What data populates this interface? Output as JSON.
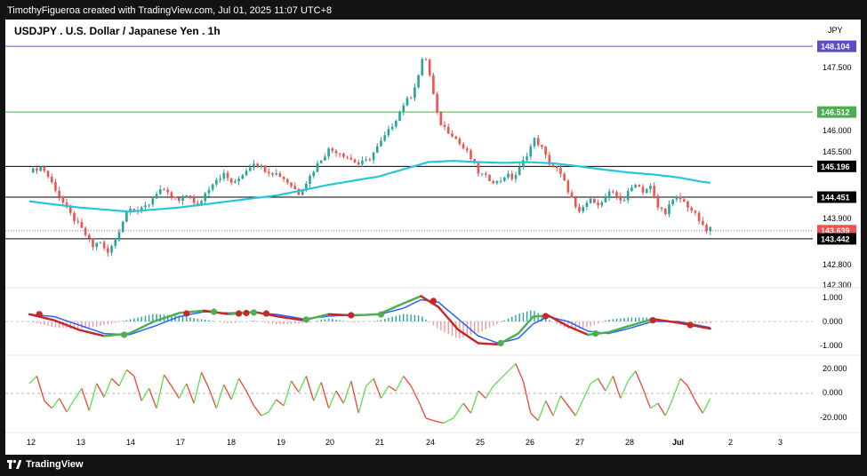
{
  "header": {
    "attribution": "TimothyFigueroa created with TradingView.com, Jul 01, 2025 11:07 UTC+8"
  },
  "footer": {
    "brand": "TradingView"
  },
  "chart_data": [
    {
      "type": "line",
      "subtype": "candlestick",
      "title": "USDJPY . U.S. Dollar / Japanese Yen . 1h",
      "currency": "JPY",
      "ylim": [
        142.3,
        148.15
      ],
      "y_ticks": [
        "147.500",
        "146.000",
        "145.500",
        "143.900",
        "142.800",
        "142.300"
      ],
      "x_ticks": [
        "12",
        "13",
        "14",
        "17",
        "18",
        "19",
        "20",
        "21",
        "24",
        "25",
        "26",
        "27",
        "28",
        "Jul",
        "2",
        "3"
      ],
      "price_series": [
        {
          "t": 0.0,
          "p": 145.05
        },
        {
          "t": 0.25,
          "p": 145.2
        },
        {
          "t": 0.5,
          "p": 144.7
        },
        {
          "t": 0.75,
          "p": 144.15
        },
        {
          "t": 1.0,
          "p": 143.75
        },
        {
          "t": 1.15,
          "p": 143.5
        },
        {
          "t": 1.3,
          "p": 143.2
        },
        {
          "t": 1.4,
          "p": 143.45
        },
        {
          "t": 1.55,
          "p": 143.05
        },
        {
          "t": 1.7,
          "p": 143.35
        },
        {
          "t": 1.85,
          "p": 143.8
        },
        {
          "t": 2.0,
          "p": 144.25
        },
        {
          "t": 2.2,
          "p": 144.1
        },
        {
          "t": 2.4,
          "p": 144.3
        },
        {
          "t": 2.6,
          "p": 144.65
        },
        {
          "t": 2.8,
          "p": 144.5
        },
        {
          "t": 3.0,
          "p": 144.35
        },
        {
          "t": 3.2,
          "p": 144.55
        },
        {
          "t": 3.35,
          "p": 144.15
        },
        {
          "t": 3.5,
          "p": 144.5
        },
        {
          "t": 3.7,
          "p": 144.85
        },
        {
          "t": 3.9,
          "p": 145.0
        },
        {
          "t": 4.1,
          "p": 144.75
        },
        {
          "t": 4.3,
          "p": 145.05
        },
        {
          "t": 4.5,
          "p": 145.3
        },
        {
          "t": 4.75,
          "p": 145.1
        },
        {
          "t": 5.0,
          "p": 145.0
        },
        {
          "t": 5.2,
          "p": 144.8
        },
        {
          "t": 5.4,
          "p": 144.55
        },
        {
          "t": 5.6,
          "p": 144.9
        },
        {
          "t": 5.8,
          "p": 145.3
        },
        {
          "t": 6.0,
          "p": 145.6
        },
        {
          "t": 6.2,
          "p": 145.55
        },
        {
          "t": 6.4,
          "p": 145.4
        },
        {
          "t": 6.6,
          "p": 145.25
        },
        {
          "t": 6.8,
          "p": 145.35
        },
        {
          "t": 7.0,
          "p": 145.7
        },
        {
          "t": 7.2,
          "p": 146.05
        },
        {
          "t": 7.35,
          "p": 146.35
        },
        {
          "t": 7.5,
          "p": 146.7
        },
        {
          "t": 7.65,
          "p": 146.9
        },
        {
          "t": 7.8,
          "p": 147.4
        },
        {
          "t": 7.92,
          "p": 147.95
        },
        {
          "t": 8.0,
          "p": 147.55
        },
        {
          "t": 8.08,
          "p": 147.05
        },
        {
          "t": 8.2,
          "p": 146.3
        },
        {
          "t": 8.35,
          "p": 146.1
        },
        {
          "t": 8.5,
          "p": 145.95
        },
        {
          "t": 8.65,
          "p": 145.7
        },
        {
          "t": 8.8,
          "p": 145.5
        },
        {
          "t": 9.0,
          "p": 145.05
        },
        {
          "t": 9.2,
          "p": 144.9
        },
        {
          "t": 9.4,
          "p": 144.8
        },
        {
          "t": 9.55,
          "p": 145.0
        },
        {
          "t": 9.7,
          "p": 144.9
        },
        {
          "t": 9.85,
          "p": 145.2
        },
        {
          "t": 10.0,
          "p": 145.55
        },
        {
          "t": 10.12,
          "p": 145.85
        },
        {
          "t": 10.25,
          "p": 145.7
        },
        {
          "t": 10.4,
          "p": 145.3
        },
        {
          "t": 10.6,
          "p": 145.1
        },
        {
          "t": 10.75,
          "p": 144.75
        },
        {
          "t": 10.9,
          "p": 144.35
        },
        {
          "t": 11.0,
          "p": 144.0
        },
        {
          "t": 11.15,
          "p": 144.3
        },
        {
          "t": 11.3,
          "p": 144.4
        },
        {
          "t": 11.45,
          "p": 144.25
        },
        {
          "t": 11.6,
          "p": 144.55
        },
        {
          "t": 11.75,
          "p": 144.5
        },
        {
          "t": 11.9,
          "p": 144.35
        },
        {
          "t": 12.0,
          "p": 144.55
        },
        {
          "t": 12.15,
          "p": 144.8
        },
        {
          "t": 12.3,
          "p": 144.6
        },
        {
          "t": 12.45,
          "p": 144.7
        },
        {
          "t": 12.6,
          "p": 144.2
        },
        {
          "t": 12.75,
          "p": 144.1
        },
        {
          "t": 12.85,
          "p": 144.3
        },
        {
          "t": 13.0,
          "p": 144.45
        },
        {
          "t": 13.15,
          "p": 144.3
        },
        {
          "t": 13.3,
          "p": 144.1
        },
        {
          "t": 13.45,
          "p": 143.85
        },
        {
          "t": 13.55,
          "p": 143.6
        },
        {
          "t": 13.65,
          "p": 143.7
        }
      ],
      "moving_average": [
        {
          "t": 0.0,
          "p": 144.35
        },
        {
          "t": 1.0,
          "p": 144.2
        },
        {
          "t": 2.0,
          "p": 144.1
        },
        {
          "t": 3.0,
          "p": 144.2
        },
        {
          "t": 4.0,
          "p": 144.35
        },
        {
          "t": 5.0,
          "p": 144.5
        },
        {
          "t": 6.0,
          "p": 144.75
        },
        {
          "t": 7.0,
          "p": 144.95
        },
        {
          "t": 8.0,
          "p": 145.3
        },
        {
          "t": 8.5,
          "p": 145.33
        },
        {
          "t": 9.0,
          "p": 145.3
        },
        {
          "t": 9.5,
          "p": 145.28
        },
        {
          "t": 10.0,
          "p": 145.3
        },
        {
          "t": 10.5,
          "p": 145.27
        },
        {
          "t": 11.0,
          "p": 145.2
        },
        {
          "t": 11.5,
          "p": 145.12
        },
        {
          "t": 12.0,
          "p": 145.05
        },
        {
          "t": 12.5,
          "p": 145.0
        },
        {
          "t": 13.0,
          "p": 144.93
        },
        {
          "t": 13.5,
          "p": 144.82
        },
        {
          "t": 13.65,
          "p": 144.8
        }
      ],
      "levels": [
        {
          "value": 148.104,
          "label": "148.104",
          "color": "#5b4fc7"
        },
        {
          "value": 146.512,
          "label": "146.512",
          "color": "#4caf50"
        },
        {
          "value": 145.196,
          "label": "145.196",
          "color": "#000000"
        },
        {
          "value": 144.451,
          "label": "144.451",
          "color": "#000000"
        },
        {
          "value": 143.639,
          "label": "143.639",
          "color": "#ef5350"
        },
        {
          "value": 143.442,
          "label": "143.442",
          "color": "#000000"
        }
      ]
    },
    {
      "type": "line",
      "subtype": "oscillator-crossover",
      "ylim": [
        -1.25,
        1.25
      ],
      "y_ticks": [
        "1.000",
        "0.000",
        "-1.000"
      ],
      "osc_series": [
        {
          "t": 0.0,
          "p": 0.3
        },
        {
          "t": 0.5,
          "p": 0.05
        },
        {
          "t": 1.0,
          "p": -0.35
        },
        {
          "t": 1.5,
          "p": -0.6
        },
        {
          "t": 2.0,
          "p": -0.5
        },
        {
          "t": 2.5,
          "p": 0.0
        },
        {
          "t": 3.0,
          "p": 0.35
        },
        {
          "t": 3.5,
          "p": 0.45
        },
        {
          "t": 4.0,
          "p": 0.3
        },
        {
          "t": 4.5,
          "p": 0.4
        },
        {
          "t": 5.0,
          "p": 0.2
        },
        {
          "t": 5.5,
          "p": 0.05
        },
        {
          "t": 6.0,
          "p": 0.3
        },
        {
          "t": 6.5,
          "p": 0.25
        },
        {
          "t": 7.0,
          "p": 0.3
        },
        {
          "t": 7.5,
          "p": 0.75
        },
        {
          "t": 7.85,
          "p": 1.05
        },
        {
          "t": 8.2,
          "p": 0.6
        },
        {
          "t": 8.6,
          "p": -0.35
        },
        {
          "t": 9.0,
          "p": -0.9
        },
        {
          "t": 9.4,
          "p": -0.95
        },
        {
          "t": 9.8,
          "p": -0.5
        },
        {
          "t": 10.1,
          "p": 0.2
        },
        {
          "t": 10.4,
          "p": 0.25
        },
        {
          "t": 10.8,
          "p": -0.2
        },
        {
          "t": 11.2,
          "p": -0.55
        },
        {
          "t": 11.6,
          "p": -0.45
        },
        {
          "t": 12.0,
          "p": -0.2
        },
        {
          "t": 12.5,
          "p": 0.1
        },
        {
          "t": 13.0,
          "p": -0.05
        },
        {
          "t": 13.4,
          "p": -0.2
        },
        {
          "t": 13.65,
          "p": -0.3
        }
      ],
      "signal_series": [
        {
          "t": 0.0,
          "p": 0.3
        },
        {
          "t": 0.5,
          "p": 0.2
        },
        {
          "t": 1.0,
          "p": -0.15
        },
        {
          "t": 1.5,
          "p": -0.5
        },
        {
          "t": 2.0,
          "p": -0.55
        },
        {
          "t": 2.5,
          "p": -0.2
        },
        {
          "t": 3.0,
          "p": 0.2
        },
        {
          "t": 3.5,
          "p": 0.4
        },
        {
          "t": 4.0,
          "p": 0.35
        },
        {
          "t": 4.5,
          "p": 0.38
        },
        {
          "t": 5.0,
          "p": 0.28
        },
        {
          "t": 5.5,
          "p": 0.1
        },
        {
          "t": 6.0,
          "p": 0.22
        },
        {
          "t": 6.5,
          "p": 0.28
        },
        {
          "t": 7.0,
          "p": 0.28
        },
        {
          "t": 7.5,
          "p": 0.55
        },
        {
          "t": 7.85,
          "p": 0.9
        },
        {
          "t": 8.2,
          "p": 0.8
        },
        {
          "t": 8.6,
          "p": 0.1
        },
        {
          "t": 9.0,
          "p": -0.6
        },
        {
          "t": 9.4,
          "p": -0.9
        },
        {
          "t": 9.8,
          "p": -0.7
        },
        {
          "t": 10.1,
          "p": -0.1
        },
        {
          "t": 10.4,
          "p": 0.2
        },
        {
          "t": 10.8,
          "p": 0.0
        },
        {
          "t": 11.2,
          "p": -0.4
        },
        {
          "t": 11.6,
          "p": -0.5
        },
        {
          "t": 12.0,
          "p": -0.3
        },
        {
          "t": 12.5,
          "p": 0.0
        },
        {
          "t": 13.0,
          "p": 0.0
        },
        {
          "t": 13.4,
          "p": -0.15
        },
        {
          "t": 13.65,
          "p": -0.25
        }
      ],
      "signals": [
        {
          "t": 0.2,
          "p": 0.3,
          "kind": "bearish"
        },
        {
          "t": 1.9,
          "p": -0.55,
          "kind": "bullish"
        },
        {
          "t": 3.15,
          "p": 0.33,
          "kind": "bearish"
        },
        {
          "t": 3.7,
          "p": 0.4,
          "kind": "bullish"
        },
        {
          "t": 4.2,
          "p": 0.33,
          "kind": "bearish"
        },
        {
          "t": 4.35,
          "p": 0.35,
          "kind": "bearish"
        },
        {
          "t": 4.5,
          "p": 0.37,
          "kind": "bullish"
        },
        {
          "t": 4.75,
          "p": 0.33,
          "kind": "bearish"
        },
        {
          "t": 5.55,
          "p": 0.08,
          "kind": "bullish"
        },
        {
          "t": 6.45,
          "p": 0.26,
          "kind": "bearish"
        },
        {
          "t": 7.05,
          "p": 0.29,
          "kind": "bullish"
        },
        {
          "t": 8.1,
          "p": 0.85,
          "kind": "bearish"
        },
        {
          "t": 9.45,
          "p": -0.9,
          "kind": "bullish"
        },
        {
          "t": 10.35,
          "p": 0.22,
          "kind": "bearish"
        },
        {
          "t": 11.35,
          "p": -0.5,
          "kind": "bullish"
        },
        {
          "t": 12.5,
          "p": 0.05,
          "kind": "bearish"
        },
        {
          "t": 13.25,
          "p": -0.15,
          "kind": "bearish"
        }
      ]
    },
    {
      "type": "line",
      "subtype": "oscillator-colored",
      "ylim": [
        -28,
        28
      ],
      "y_ticks": [
        "20.000",
        "0.000",
        "-20.000"
      ],
      "values": [
        {
          "t": 0.0,
          "p": 8
        },
        {
          "t": 0.15,
          "p": 14
        },
        {
          "t": 0.3,
          "p": -6
        },
        {
          "t": 0.45,
          "p": -12
        },
        {
          "t": 0.6,
          "p": -4
        },
        {
          "t": 0.75,
          "p": -15
        },
        {
          "t": 0.9,
          "p": -5
        },
        {
          "t": 1.05,
          "p": 4
        },
        {
          "t": 1.2,
          "p": -14
        },
        {
          "t": 1.35,
          "p": 8
        },
        {
          "t": 1.5,
          "p": -3
        },
        {
          "t": 1.65,
          "p": 12
        },
        {
          "t": 1.8,
          "p": 6
        },
        {
          "t": 1.95,
          "p": 19
        },
        {
          "t": 2.1,
          "p": 14
        },
        {
          "t": 2.25,
          "p": -6
        },
        {
          "t": 2.4,
          "p": 4
        },
        {
          "t": 2.55,
          "p": -12
        },
        {
          "t": 2.7,
          "p": 15
        },
        {
          "t": 2.85,
          "p": 6
        },
        {
          "t": 3.0,
          "p": -4
        },
        {
          "t": 3.15,
          "p": 8
        },
        {
          "t": 3.3,
          "p": -8
        },
        {
          "t": 3.45,
          "p": 17
        },
        {
          "t": 3.6,
          "p": 4
        },
        {
          "t": 3.75,
          "p": -12
        },
        {
          "t": 3.9,
          "p": 7
        },
        {
          "t": 4.05,
          "p": -5
        },
        {
          "t": 4.2,
          "p": 12
        },
        {
          "t": 4.35,
          "p": 2
        },
        {
          "t": 4.5,
          "p": -10
        },
        {
          "t": 4.65,
          "p": -18
        },
        {
          "t": 4.8,
          "p": -15
        },
        {
          "t": 4.95,
          "p": -5
        },
        {
          "t": 5.1,
          "p": -10
        },
        {
          "t": 5.25,
          "p": 10
        },
        {
          "t": 5.4,
          "p": 1
        },
        {
          "t": 5.55,
          "p": 14
        },
        {
          "t": 5.7,
          "p": -6
        },
        {
          "t": 5.85,
          "p": 9
        },
        {
          "t": 6.0,
          "p": -12
        },
        {
          "t": 6.15,
          "p": 2
        },
        {
          "t": 6.3,
          "p": -8
        },
        {
          "t": 6.45,
          "p": 10
        },
        {
          "t": 6.6,
          "p": -16
        },
        {
          "t": 6.75,
          "p": 6
        },
        {
          "t": 6.9,
          "p": 12
        },
        {
          "t": 7.05,
          "p": -4
        },
        {
          "t": 7.2,
          "p": 6
        },
        {
          "t": 7.35,
          "p": 2
        },
        {
          "t": 7.5,
          "p": 14
        },
        {
          "t": 7.65,
          "p": 6
        },
        {
          "t": 7.8,
          "p": -6
        },
        {
          "t": 7.95,
          "p": -20
        },
        {
          "t": 8.1,
          "p": -22
        },
        {
          "t": 8.3,
          "p": -24
        },
        {
          "t": 8.5,
          "p": -20
        },
        {
          "t": 8.7,
          "p": -8
        },
        {
          "t": 8.85,
          "p": -16
        },
        {
          "t": 9.0,
          "p": 2
        },
        {
          "t": 9.15,
          "p": -4
        },
        {
          "t": 9.3,
          "p": 6
        },
        {
          "t": 9.45,
          "p": 12
        },
        {
          "t": 9.6,
          "p": 18
        },
        {
          "t": 9.75,
          "p": 24
        },
        {
          "t": 9.9,
          "p": 10
        },
        {
          "t": 10.05,
          "p": -16
        },
        {
          "t": 10.2,
          "p": -22
        },
        {
          "t": 10.35,
          "p": -6
        },
        {
          "t": 10.5,
          "p": -18
        },
        {
          "t": 10.65,
          "p": -2
        },
        {
          "t": 10.8,
          "p": -10
        },
        {
          "t": 10.95,
          "p": -18
        },
        {
          "t": 11.1,
          "p": -5
        },
        {
          "t": 11.25,
          "p": 8
        },
        {
          "t": 11.4,
          "p": 12
        },
        {
          "t": 11.55,
          "p": 2
        },
        {
          "t": 11.7,
          "p": 14
        },
        {
          "t": 11.85,
          "p": -4
        },
        {
          "t": 12.0,
          "p": 10
        },
        {
          "t": 12.15,
          "p": 18
        },
        {
          "t": 12.3,
          "p": 4
        },
        {
          "t": 12.45,
          "p": -12
        },
        {
          "t": 12.6,
          "p": -8
        },
        {
          "t": 12.75,
          "p": -18
        },
        {
          "t": 12.9,
          "p": -4
        },
        {
          "t": 13.05,
          "p": 12
        },
        {
          "t": 13.2,
          "p": 6
        },
        {
          "t": 13.35,
          "p": -6
        },
        {
          "t": 13.5,
          "p": -16
        },
        {
          "t": 13.65,
          "p": -4
        }
      ]
    }
  ],
  "colors": {
    "bull": "#26a69a",
    "bear": "#ef5350",
    "ma": "#26c6da",
    "osc_up": "#4caf50",
    "osc_down": "#c62828",
    "signal_line": "#2962ff",
    "rsi_up": "#5ee04b",
    "rsi_down": "#f44336"
  }
}
